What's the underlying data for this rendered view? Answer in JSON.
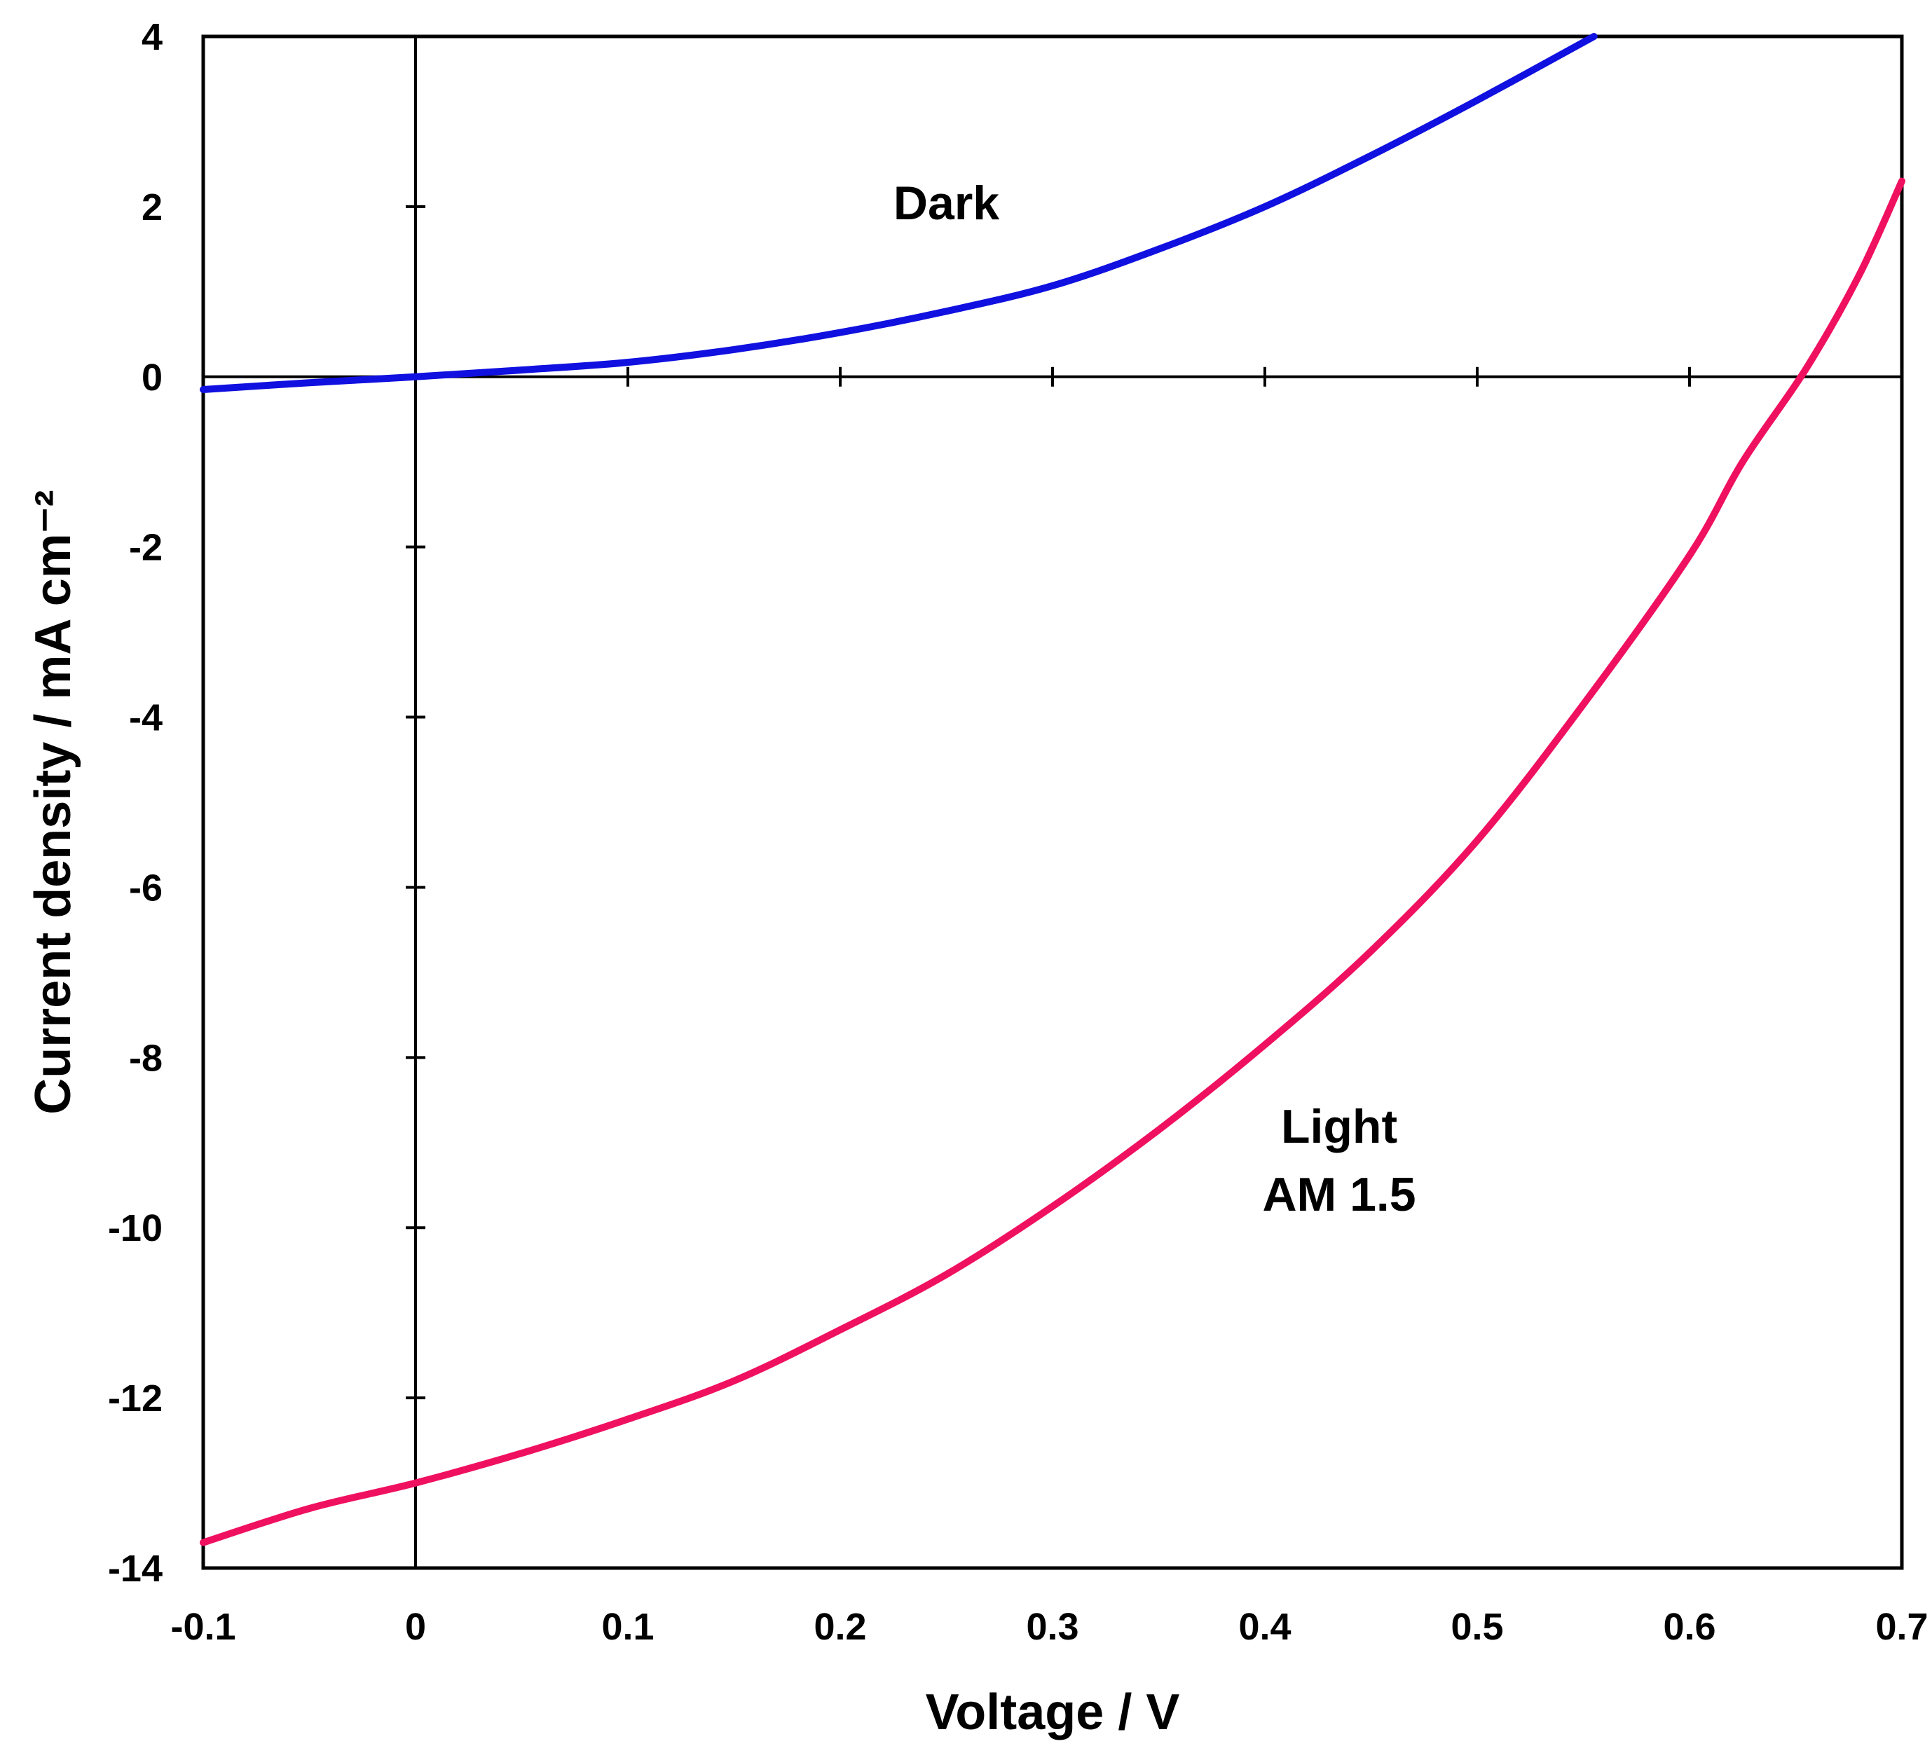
{
  "chart_data": {
    "type": "line",
    "xlabel": "Voltage / V",
    "ylabel": "Current density / mA cm⁻²",
    "xlim": [
      -0.1,
      0.7
    ],
    "ylim": [
      -14,
      4
    ],
    "x_ticks": [
      -0.1,
      0,
      0.1,
      0.2,
      0.3,
      0.4,
      0.5,
      0.6,
      0.7
    ],
    "y_ticks": [
      -14,
      -12,
      -10,
      -8,
      -6,
      -4,
      -2,
      0,
      2,
      4
    ],
    "x_tick_labels": [
      "-0.1",
      "0",
      "0.1",
      "0.2",
      "0.3",
      "0.4",
      "0.5",
      "0.6",
      "0.7"
    ],
    "y_tick_labels": [
      "-14",
      "-12",
      "-10",
      "-8",
      "-6",
      "-4",
      "-2",
      "0",
      "2",
      "4"
    ],
    "grid": false,
    "zero_lines": true,
    "series": [
      {
        "color": "#1010e0",
        "x": [
          -0.1,
          -0.05,
          0,
          0.05,
          0.1,
          0.15,
          0.2,
          0.25,
          0.3,
          0.35,
          0.4,
          0.45,
          0.5,
          0.555
        ],
        "y": [
          -0.15,
          -0.07,
          0,
          0.08,
          0.17,
          0.32,
          0.52,
          0.77,
          1.07,
          1.5,
          2.0,
          2.6,
          3.25,
          4.0
        ]
      },
      {
        "color": "#f01060",
        "x": [
          -0.1,
          -0.05,
          0,
          0.05,
          0.1,
          0.15,
          0.2,
          0.25,
          0.3,
          0.35,
          0.4,
          0.45,
          0.5,
          0.55,
          0.6,
          0.625,
          0.655,
          0.68,
          0.7
        ],
        "y": [
          -13.7,
          -13.3,
          -13.0,
          -12.65,
          -12.25,
          -11.8,
          -11.2,
          -10.55,
          -9.75,
          -8.85,
          -7.85,
          -6.75,
          -5.45,
          -3.85,
          -2.1,
          -1.0,
          0.1,
          1.2,
          2.3
        ]
      }
    ],
    "annotations": [
      {
        "text": "Dark",
        "x": 0.25,
        "y": 1.85
      },
      {
        "text": "Light",
        "x": 0.435,
        "y": -9.0
      },
      {
        "text": "AM 1.5",
        "x": 0.435,
        "y": -9.8
      }
    ]
  }
}
